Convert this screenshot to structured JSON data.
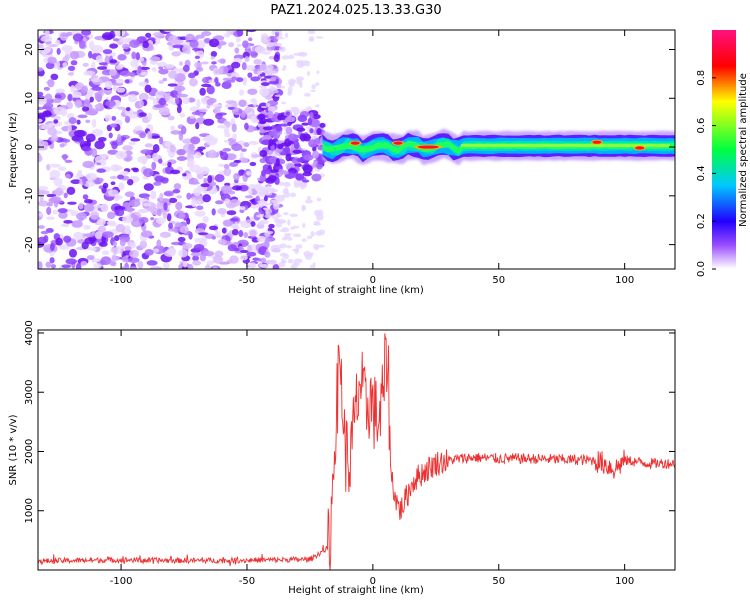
{
  "title": "PAZ1.2024.025.13.33.G30",
  "chart_data": [
    {
      "type": "heatmap",
      "xlabel": "Height of straight line (km)",
      "ylabel": "Frequency (Hz)",
      "xlim": [
        -133,
        120
      ],
      "ylim": [
        -25,
        24
      ],
      "xticks": [
        -100,
        -50,
        0,
        50,
        100
      ],
      "yticks": [
        -20,
        -10,
        0,
        10,
        20
      ],
      "grid": false,
      "colorbar": {
        "label": "Normalized spectral amplitude",
        "range": [
          0.0,
          1.0
        ],
        "ticks": [
          0.0,
          0.2,
          0.4,
          0.6,
          0.8
        ],
        "tick_labels": [
          "0.0",
          "0.2",
          "0.4",
          "0.6",
          "0.8"
        ],
        "colors": [
          "#ffffff",
          "#9a4dff",
          "#2000ff",
          "#00c8ff",
          "#00ff40",
          "#ffff00",
          "#ff0000",
          "#ff1080"
        ]
      },
      "regions": [
        {
          "x": [
            -133,
            -45
          ],
          "freq": [
            -25,
            24
          ],
          "description_level": 0.3
        },
        {
          "x": [
            -45,
            -20
          ],
          "freq": [
            -8,
            8
          ],
          "description_level": 0.3
        },
        {
          "x": [
            -20,
            120
          ],
          "freq": [
            -1.5,
            1.5
          ],
          "description_level": 0.5
        }
      ],
      "ridge_points": [
        {
          "x": -7,
          "freq": 0.8,
          "value": 0.85
        },
        {
          "x": 10,
          "freq": 0.8,
          "value": 0.7
        },
        {
          "x": 22,
          "freq": 0.0,
          "value": 0.95
        },
        {
          "x": 89,
          "freq": 1.0,
          "value": 0.75
        },
        {
          "x": 106,
          "freq": -0.2,
          "value": 0.75
        }
      ]
    },
    {
      "type": "line",
      "xlabel": "Height of straight line (km)",
      "ylabel": "SNR (10 * v/v)",
      "xlim": [
        -133,
        120
      ],
      "ylim": [
        0,
        4050
      ],
      "xticks": [
        -100,
        -50,
        0,
        50,
        100
      ],
      "yticks": [
        1000,
        2000,
        3000,
        4000
      ],
      "grid": false,
      "series_color": "#ee3030",
      "series": [
        {
          "x": [
            -133,
            -120,
            -100,
            -80,
            -60,
            -40,
            -25,
            -17,
            -15,
            -13,
            -11,
            -9,
            -7,
            -5,
            -3,
            -1,
            1,
            3,
            5,
            6,
            7,
            9,
            11,
            13,
            16,
            20,
            25,
            30,
            35,
            40,
            50,
            60,
            70,
            80,
            88,
            92,
            96,
            100,
            110,
            120
          ],
          "y": [
            150,
            160,
            170,
            160,
            160,
            170,
            180,
            400,
            2400,
            3600,
            2000,
            1800,
            2600,
            3200,
            2700,
            2900,
            2600,
            2550,
            3400,
            3700,
            1700,
            1200,
            1000,
            1200,
            1500,
            1650,
            1800,
            1850,
            1880,
            1900,
            1880,
            1880,
            1870,
            1860,
            1850,
            1800,
            1700,
            1850,
            1800,
            1800
          ]
        }
      ]
    }
  ]
}
